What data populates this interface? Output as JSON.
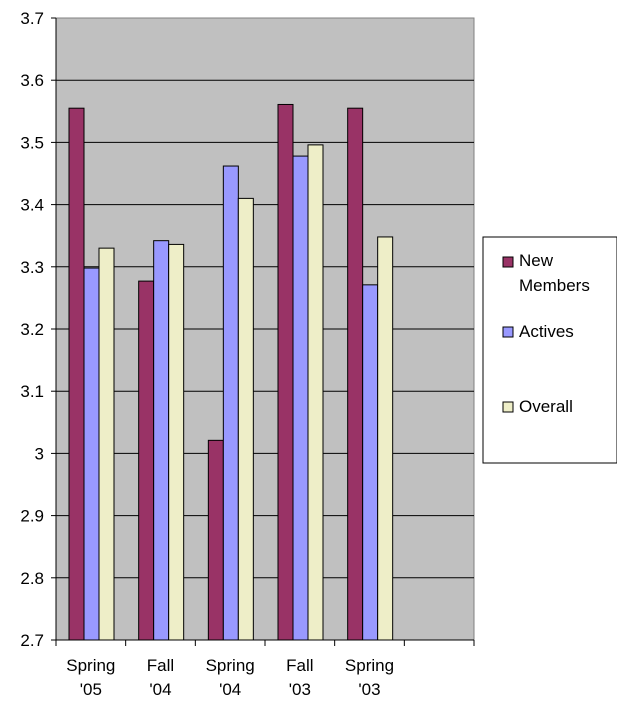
{
  "chart_data": {
    "type": "bar",
    "title": "",
    "xlabel": "",
    "ylabel": "",
    "categories": [
      [
        "Spring",
        "'05"
      ],
      [
        "Fall",
        "'04"
      ],
      [
        "Spring",
        "'04"
      ],
      [
        "Fall",
        "'03"
      ],
      [
        "Spring",
        "'03"
      ],
      [
        "",
        ""
      ]
    ],
    "ylim": [
      2.7,
      3.7
    ],
    "yticks": [
      "2.7",
      "2.8",
      "2.9",
      "3",
      "3.1",
      "3.2",
      "3.3",
      "3.4",
      "3.5",
      "3.6",
      "3.7"
    ],
    "grid": true,
    "legend_position": "right",
    "plot_background": "#C0C0C0",
    "series": [
      {
        "name": "New Members",
        "color": "#993366",
        "values": [
          3.555,
          3.277,
          3.021,
          3.561,
          3.555,
          null
        ]
      },
      {
        "name": "Actives",
        "color": "#9999FF",
        "values": [
          3.298,
          3.342,
          3.462,
          3.478,
          3.271,
          null
        ]
      },
      {
        "name": "Overall",
        "color": "#EEEEC8",
        "values": [
          3.33,
          3.336,
          3.41,
          3.496,
          3.348,
          null
        ]
      }
    ],
    "legend": {
      "entries": [
        {
          "series": 0,
          "lines": [
            "New",
            "Members"
          ]
        },
        {
          "series": 1,
          "lines": [
            "Actives"
          ]
        },
        {
          "series": 2,
          "lines": [
            "Overall"
          ]
        }
      ]
    }
  }
}
